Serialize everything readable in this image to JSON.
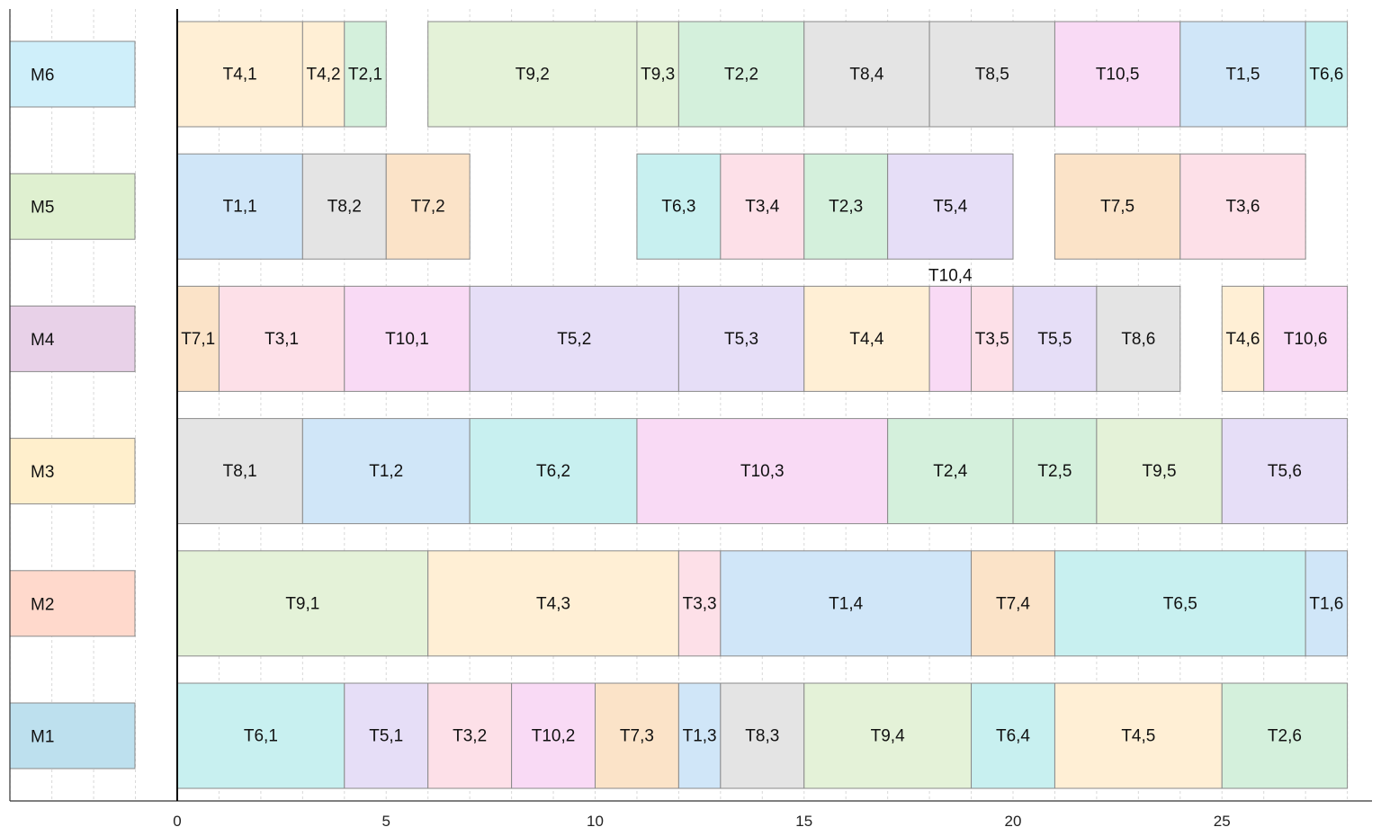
{
  "chart_data": {
    "type": "gantt",
    "xlim": [
      -4,
      28.5
    ],
    "x_ticks": [
      "0",
      "5",
      "10",
      "15",
      "20",
      "25"
    ],
    "x_tick_values": [
      0,
      5,
      10,
      15,
      20,
      25
    ],
    "grid": true,
    "machines": [
      {
        "name": "M6",
        "color": "#cfeffa"
      },
      {
        "name": "M5",
        "color": "#dff0d0"
      },
      {
        "name": "M4",
        "color": "#e8d1e8"
      },
      {
        "name": "M3",
        "color": "#ffefcc"
      },
      {
        "name": "M2",
        "color": "#ffd9cc"
      },
      {
        "name": "M1",
        "color": "#bde0ee"
      }
    ],
    "job_colors": {
      "T1": "#d0e6f8",
      "T2": "#d4f0dc",
      "T3": "#fde0e8",
      "T4": "#ffefd5",
      "T5": "#e6def7",
      "T6": "#c8f0f0",
      "T7": "#fbe3c8",
      "T8": "#e4e4e4",
      "T9": "#e4f2d8",
      "T10": "#f9daf5"
    },
    "tasks": [
      {
        "machine": "M6",
        "label": "T4,1",
        "job": "T4",
        "start": 0,
        "end": 3
      },
      {
        "machine": "M6",
        "label": "T4,2",
        "job": "T4",
        "start": 3,
        "end": 4
      },
      {
        "machine": "M6",
        "label": "T2,1",
        "job": "T2",
        "start": 4,
        "end": 5
      },
      {
        "machine": "M6",
        "label": "T9,2",
        "job": "T9",
        "start": 6,
        "end": 11
      },
      {
        "machine": "M6",
        "label": "T9,3",
        "job": "T9",
        "start": 11,
        "end": 12
      },
      {
        "machine": "M6",
        "label": "T2,2",
        "job": "T2",
        "start": 12,
        "end": 15
      },
      {
        "machine": "M6",
        "label": "T8,4",
        "job": "T8",
        "start": 15,
        "end": 18
      },
      {
        "machine": "M6",
        "label": "T8,5",
        "job": "T8",
        "start": 18,
        "end": 21
      },
      {
        "machine": "M6",
        "label": "T10,5",
        "job": "T10",
        "start": 21,
        "end": 24
      },
      {
        "machine": "M6",
        "label": "T1,5",
        "job": "T1",
        "start": 24,
        "end": 27
      },
      {
        "machine": "M6",
        "label": "T6,6",
        "job": "T6",
        "start": 27,
        "end": 28
      },
      {
        "machine": "M5",
        "label": "T1,1",
        "job": "T1",
        "start": 0,
        "end": 3
      },
      {
        "machine": "M5",
        "label": "T8,2",
        "job": "T8",
        "start": 3,
        "end": 5
      },
      {
        "machine": "M5",
        "label": "T7,2",
        "job": "T7",
        "start": 5,
        "end": 7
      },
      {
        "machine": "M5",
        "label": "T6,3",
        "job": "T6",
        "start": 11,
        "end": 13
      },
      {
        "machine": "M5",
        "label": "T3,4",
        "job": "T3",
        "start": 13,
        "end": 15
      },
      {
        "machine": "M5",
        "label": "T2,3",
        "job": "T2",
        "start": 15,
        "end": 17
      },
      {
        "machine": "M5",
        "label": "T5,4",
        "job": "T5",
        "start": 17,
        "end": 20
      },
      {
        "machine": "M5",
        "label": "T7,5",
        "job": "T7",
        "start": 21,
        "end": 24
      },
      {
        "machine": "M5",
        "label": "T3,6",
        "job": "T3",
        "start": 24,
        "end": 27
      },
      {
        "machine": "M4",
        "label": "T7,1",
        "job": "T7",
        "start": 0,
        "end": 1
      },
      {
        "machine": "M4",
        "label": "T3,1",
        "job": "T3",
        "start": 1,
        "end": 4
      },
      {
        "machine": "M4",
        "label": "T10,1",
        "job": "T10",
        "start": 4,
        "end": 7
      },
      {
        "machine": "M4",
        "label": "T5,2",
        "job": "T5",
        "start": 7,
        "end": 12
      },
      {
        "machine": "M4",
        "label": "T5,3",
        "job": "T5",
        "start": 12,
        "end": 15
      },
      {
        "machine": "M4",
        "label": "T4,4",
        "job": "T4",
        "start": 15,
        "end": 18
      },
      {
        "machine": "M4",
        "label": "T10,4",
        "job": "T10",
        "start": 18,
        "end": 19,
        "label_above": true
      },
      {
        "machine": "M4",
        "label": "T3,5",
        "job": "T3",
        "start": 19,
        "end": 20
      },
      {
        "machine": "M4",
        "label": "T5,5",
        "job": "T5",
        "start": 20,
        "end": 22
      },
      {
        "machine": "M4",
        "label": "T8,6",
        "job": "T8",
        "start": 22,
        "end": 24
      },
      {
        "machine": "M4",
        "label": "T4,6",
        "job": "T4",
        "start": 25,
        "end": 26
      },
      {
        "machine": "M4",
        "label": "T10,6",
        "job": "T10",
        "start": 26,
        "end": 28
      },
      {
        "machine": "M3",
        "label": "T8,1",
        "job": "T8",
        "start": 0,
        "end": 3
      },
      {
        "machine": "M3",
        "label": "T1,2",
        "job": "T1",
        "start": 3,
        "end": 7
      },
      {
        "machine": "M3",
        "label": "T6,2",
        "job": "T6",
        "start": 7,
        "end": 11
      },
      {
        "machine": "M3",
        "label": "T10,3",
        "job": "T10",
        "start": 11,
        "end": 17
      },
      {
        "machine": "M3",
        "label": "T2,4",
        "job": "T2",
        "start": 17,
        "end": 20
      },
      {
        "machine": "M3",
        "label": "T2,5",
        "job": "T2",
        "start": 20,
        "end": 22
      },
      {
        "machine": "M3",
        "label": "T9,5",
        "job": "T9",
        "start": 22,
        "end": 25
      },
      {
        "machine": "M3",
        "label": "T5,6",
        "job": "T5",
        "start": 25,
        "end": 28
      },
      {
        "machine": "M2",
        "label": "T9,1",
        "job": "T9",
        "start": 0,
        "end": 6
      },
      {
        "machine": "M2",
        "label": "T4,3",
        "job": "T4",
        "start": 6,
        "end": 12
      },
      {
        "machine": "M2",
        "label": "T3,3",
        "job": "T3",
        "start": 12,
        "end": 13
      },
      {
        "machine": "M2",
        "label": "T1,4",
        "job": "T1",
        "start": 13,
        "end": 19
      },
      {
        "machine": "M2",
        "label": "T7,4",
        "job": "T7",
        "start": 19,
        "end": 21
      },
      {
        "machine": "M2",
        "label": "T6,5",
        "job": "T6",
        "start": 21,
        "end": 27
      },
      {
        "machine": "M2",
        "label": "T1,6",
        "job": "T1",
        "start": 27,
        "end": 28
      },
      {
        "machine": "M1",
        "label": "T6,1",
        "job": "T6",
        "start": 0,
        "end": 4
      },
      {
        "machine": "M1",
        "label": "T5,1",
        "job": "T5",
        "start": 4,
        "end": 6
      },
      {
        "machine": "M1",
        "label": "T3,2",
        "job": "T3",
        "start": 6,
        "end": 8
      },
      {
        "machine": "M1",
        "label": "T10,2",
        "job": "T10",
        "start": 8,
        "end": 10
      },
      {
        "machine": "M1",
        "label": "T7,3",
        "job": "T7",
        "start": 10,
        "end": 12
      },
      {
        "machine": "M1",
        "label": "T1,3",
        "job": "T1",
        "start": 12,
        "end": 13
      },
      {
        "machine": "M1",
        "label": "T8,3",
        "job": "T8",
        "start": 13,
        "end": 15
      },
      {
        "machine": "M1",
        "label": "T9,4",
        "job": "T9",
        "start": 15,
        "end": 19
      },
      {
        "machine": "M1",
        "label": "T6,4",
        "job": "T6",
        "start": 19,
        "end": 21
      },
      {
        "machine": "M1",
        "label": "T4,5",
        "job": "T4",
        "start": 21,
        "end": 25
      },
      {
        "machine": "M1",
        "label": "T2,6",
        "job": "T2",
        "start": 25,
        "end": 28
      }
    ]
  }
}
